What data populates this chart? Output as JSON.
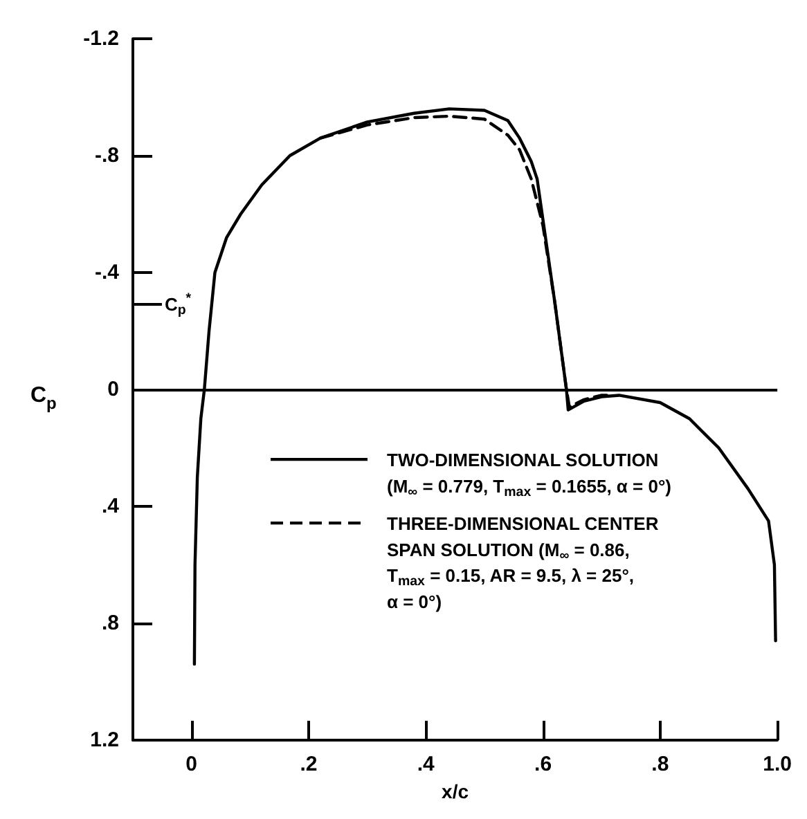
{
  "chart_data": {
    "type": "line",
    "xlabel": "x/c",
    "ylabel": "C$_{p}$",
    "xlim": [
      -0.1,
      1.0
    ],
    "xticks": [
      0,
      {
        "value": 0.2,
        "label": ".2"
      },
      {
        "value": 0.4,
        "label": ".4"
      },
      {
        "value": 0.6,
        "label": ".6"
      },
      {
        "value": 0.8,
        "label": ".8"
      },
      {
        "value": 1.0,
        "label": "1.0"
      }
    ],
    "ylim": [
      1.2,
      -1.2
    ],
    "yticks": [
      -1.2,
      {
        "value": -0.8,
        "label": "-.8"
      },
      {
        "value": -0.4,
        "label": "-.4"
      },
      0,
      {
        "value": 0.4,
        "label": ".4"
      },
      {
        "value": 0.8,
        "label": ".8"
      },
      1.2
    ],
    "marker": "none",
    "legend": "bottom",
    "grid": false,
    "ref_lines": [
      {
        "axis": "y",
        "value": 0,
        "label": null
      },
      {
        "axis": "y",
        "value": -0.29,
        "label": "C$_{p}$$^{*}$"
      }
    ],
    "series": [
      {
        "name": "TWO-DIMENSIONAL SOLUTION\n(M$_{∞}$ = 0.779, T$_{max}$ = 0.1655, α = 0°)",
        "color": "#000000",
        "line_style": "solid",
        "x": [
          0.005,
          0.006,
          0.01,
          0.016,
          0.022,
          0.03,
          0.04,
          0.06,
          0.084,
          0.12,
          0.168,
          0.22,
          0.3,
          0.38,
          0.44,
          0.5,
          0.54,
          0.56,
          0.58,
          0.59,
          0.6,
          0.62,
          0.64,
          0.643,
          0.67,
          0.7,
          0.73,
          0.8,
          0.85,
          0.9,
          0.95,
          0.985,
          0.995,
          0.997
        ],
        "values": [
          0.94,
          0.6,
          0.3,
          0.1,
          0,
          -0.2,
          -0.4,
          -0.52,
          -0.6,
          -0.7,
          -0.8,
          -0.86,
          -0.915,
          -0.945,
          -0.96,
          -0.955,
          -0.92,
          -0.86,
          -0.78,
          -0.72,
          -0.58,
          -0.3,
          0,
          0.07,
          0.04,
          0.025,
          0.02,
          0.045,
          0.1,
          0.2,
          0.34,
          0.45,
          0.6,
          0.86
        ]
      },
      {
        "name": "THREE-DIMENSIONAL CENTER\nSPAN SOLUTION (M$_{∞}$ = 0.86,\nT$_{max}$ = 0.15, AR = 9.5, λ = 25°,\nα = 0°)",
        "color": "#000000",
        "line_style": "dashed",
        "x": [
          0.22,
          0.3,
          0.38,
          0.44,
          0.5,
          0.54,
          0.56,
          0.58,
          0.6,
          0.62,
          0.64,
          0.645,
          0.67,
          0.7,
          0.72
        ],
        "values": [
          -0.86,
          -0.905,
          -0.93,
          -0.935,
          -0.925,
          -0.87,
          -0.82,
          -0.72,
          -0.56,
          -0.3,
          0,
          0.06,
          0.035,
          0.02,
          0.02
        ]
      }
    ]
  }
}
